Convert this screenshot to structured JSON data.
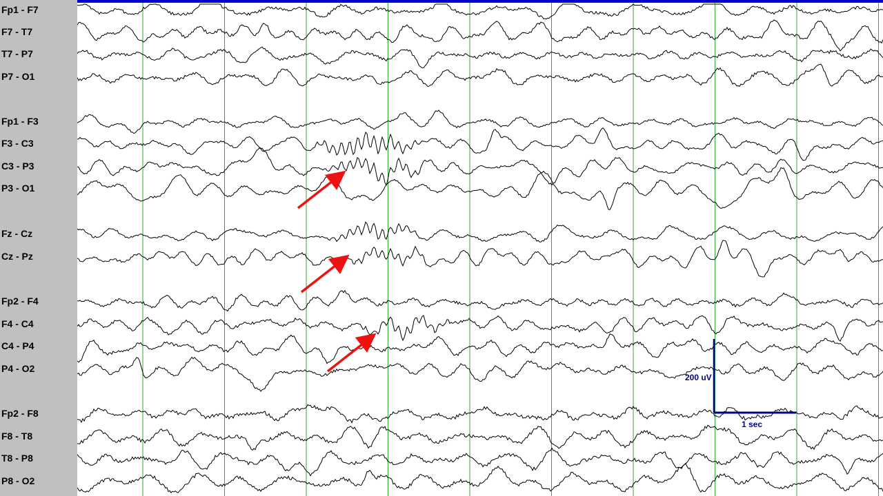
{
  "montage": {
    "channels": [
      {
        "label": "Fp1 - F7",
        "spike_amp": 30,
        "noise": 4
      },
      {
        "label": "F7 - T7",
        "spike_amp": 55,
        "noise": 4
      },
      {
        "label": "T7 - P7",
        "spike_amp": 25,
        "noise": 4
      },
      {
        "label": "P7 - O1",
        "spike_amp": 30,
        "noise": 4
      },
      {
        "label": "Fp1 - F3",
        "spike_amp": 25,
        "noise": 3
      },
      {
        "label": "F3 - C3",
        "spike_amp": 40,
        "noise": 3,
        "burst": {
          "start_sec": 3.0,
          "end_sec": 4.4,
          "freq_hz": 10,
          "amp": 22
        }
      },
      {
        "label": "C3 - P3",
        "spike_amp": 40,
        "noise": 3,
        "burst": {
          "start_sec": 3.1,
          "end_sec": 4.5,
          "freq_hz": 10,
          "amp": 18
        }
      },
      {
        "label": "P3 - O1",
        "spike_amp": 55,
        "noise": 3
      },
      {
        "label": "Fz - Cz",
        "spike_amp": 30,
        "noise": 3,
        "burst": {
          "start_sec": 3.2,
          "end_sec": 4.4,
          "freq_hz": 10,
          "amp": 16
        }
      },
      {
        "label": "Cz - Pz",
        "spike_amp": 40,
        "noise": 3,
        "burst": {
          "start_sec": 3.4,
          "end_sec": 4.5,
          "freq_hz": 10,
          "amp": 14
        }
      },
      {
        "label": "Fp2 - F4",
        "spike_amp": 30,
        "noise": 4
      },
      {
        "label": "F4 - C4",
        "spike_amp": 35,
        "noise": 4,
        "burst": {
          "start_sec": 3.5,
          "end_sec": 4.8,
          "freq_hz": 10,
          "amp": 14
        }
      },
      {
        "label": "C4 - P4",
        "spike_amp": 45,
        "noise": 4
      },
      {
        "label": "P4 - O2",
        "spike_amp": 60,
        "noise": 4
      },
      {
        "label": "Fp2 - F8",
        "spike_amp": 30,
        "noise": 5
      },
      {
        "label": "F8 - T8",
        "spike_amp": 35,
        "noise": 5
      },
      {
        "label": "T8 - P8",
        "spike_amp": 40,
        "noise": 5
      },
      {
        "label": "P8 - O2",
        "spike_amp": 45,
        "noise": 5
      }
    ],
    "page_seconds": 10,
    "second_markers": [
      1,
      2,
      3,
      4,
      5,
      6,
      7,
      8,
      9,
      10
    ]
  },
  "calibration": {
    "amplitude_label": "200 uV",
    "time_label": "1 sec",
    "color": "#000080"
  },
  "annotations": {
    "arrow_color": "#ee1111",
    "arrow_count": 3
  },
  "colors": {
    "trace": "#000000",
    "gridline": "#33aa33",
    "top_bar": "#0000cc",
    "label_panel": "#c0c0c0"
  }
}
